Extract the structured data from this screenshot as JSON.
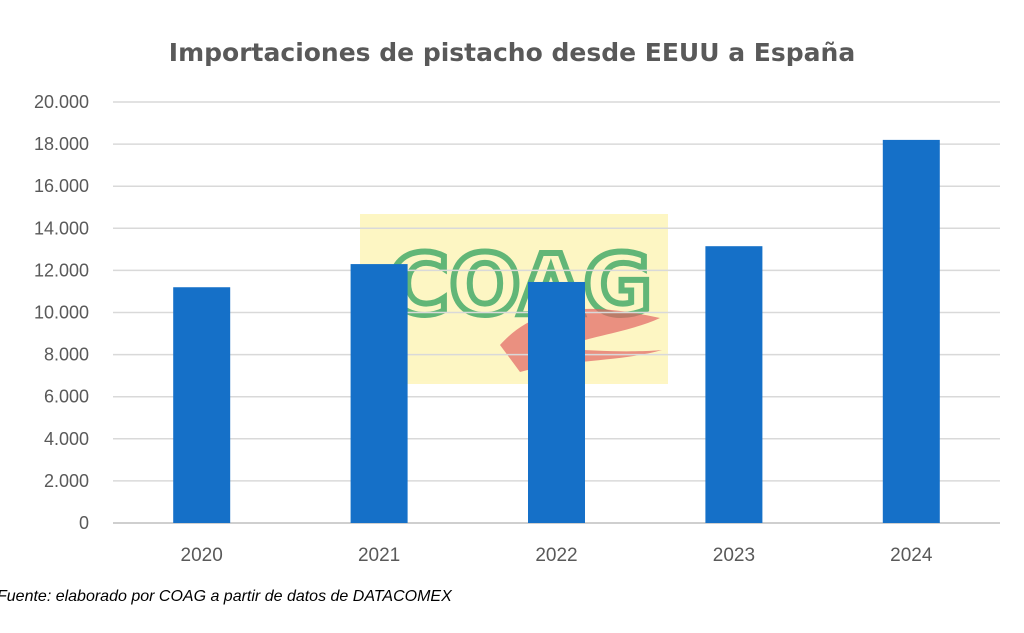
{
  "chart_data": {
    "type": "bar",
    "title": "Importaciones de pistacho desde EEUU a España",
    "categories": [
      "2020",
      "2021",
      "2022",
      "2023",
      "2024"
    ],
    "values": [
      11200,
      12300,
      11450,
      13150,
      18200
    ],
    "ylim": [
      0,
      20000
    ],
    "yticks": [
      0,
      2000,
      4000,
      6000,
      8000,
      10000,
      12000,
      14000,
      16000,
      18000,
      20000
    ],
    "ytick_labels": [
      "0",
      "2.000",
      "4.000",
      "6.000",
      "8.000",
      "10.000",
      "12.000",
      "14.000",
      "16.000",
      "18.000",
      "20.000"
    ],
    "xlabel": "",
    "ylabel": "",
    "grid": true,
    "legend": "none",
    "bar_color": "#1570c8"
  },
  "source": "Fuente: elaborado por COAG a partir de datos de DATACOMEX",
  "watermark": {
    "text": "COAG",
    "background_color": "#fdf3b0",
    "text_color": "#2e9e4a",
    "emblem_color": "#d83030"
  }
}
